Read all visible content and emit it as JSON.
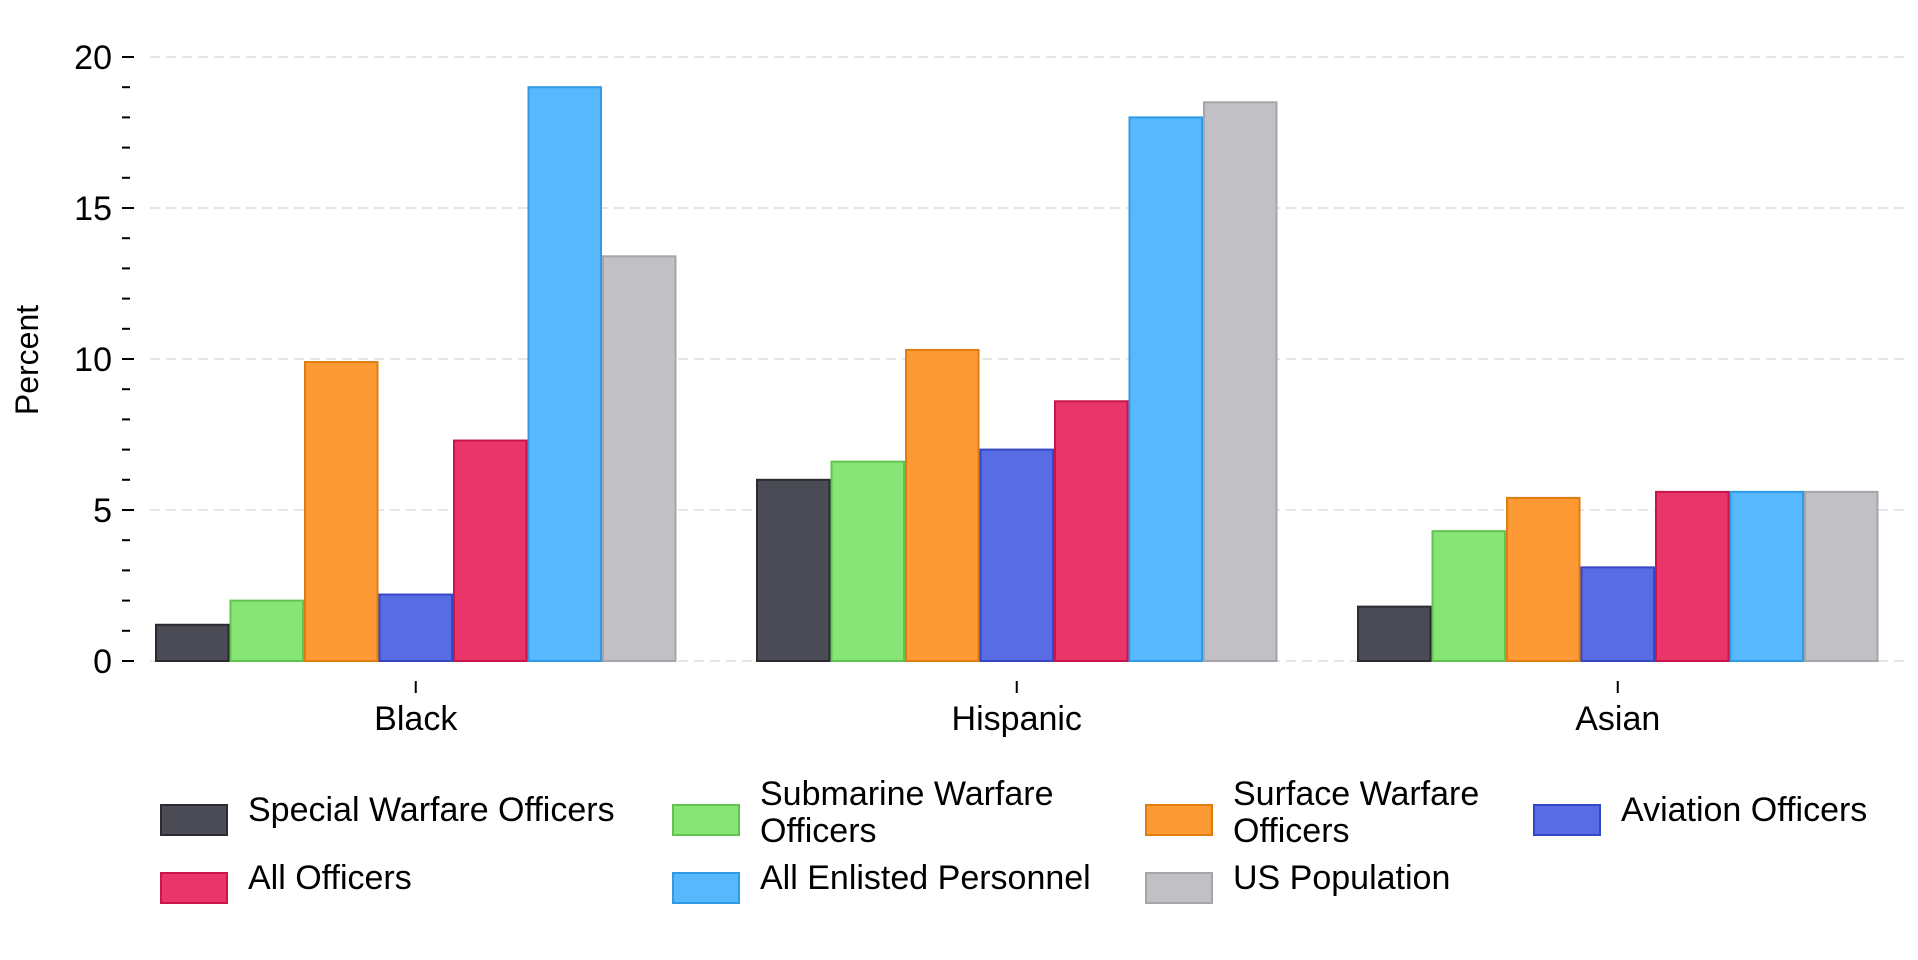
{
  "chart_data": {
    "type": "bar",
    "categories": [
      "Black",
      "Hispanic",
      "Asian"
    ],
    "ylabel": "Percent",
    "xlabel": "",
    "ylim": [
      0,
      20
    ],
    "yticks": [
      0,
      5,
      10,
      15,
      20
    ],
    "grid": true,
    "legend_position": "bottom",
    "series": [
      {
        "name": "Special Warfare Officers",
        "color": "#4b4b55",
        "border": "#2a2a30",
        "values": [
          1.2,
          6.0,
          1.8
        ]
      },
      {
        "name": "Submarine Warfare Officers",
        "color": "#86e574",
        "border": "#62c450",
        "values": [
          2.0,
          6.6,
          4.3
        ]
      },
      {
        "name": "Surface Warfare Officers",
        "color": "#fd9a35",
        "border": "#e07d10",
        "values": [
          9.9,
          10.3,
          5.4
        ]
      },
      {
        "name": "Aviation Officers",
        "color": "#586de4",
        "border": "#3547c4",
        "values": [
          2.2,
          7.0,
          3.1
        ]
      },
      {
        "name": "All Officers",
        "color": "#ea356a",
        "border": "#c8154a",
        "values": [
          7.3,
          8.6,
          5.6
        ]
      },
      {
        "name": "All Enlisted Personnel",
        "color": "#58b8fd",
        "border": "#2f9be6",
        "values": [
          19.0,
          18.0,
          5.6
        ]
      },
      {
        "name": "US Population",
        "color": "#c0c0c5",
        "border": "#a5a5ab",
        "values": [
          13.4,
          18.5,
          5.6
        ]
      }
    ]
  }
}
